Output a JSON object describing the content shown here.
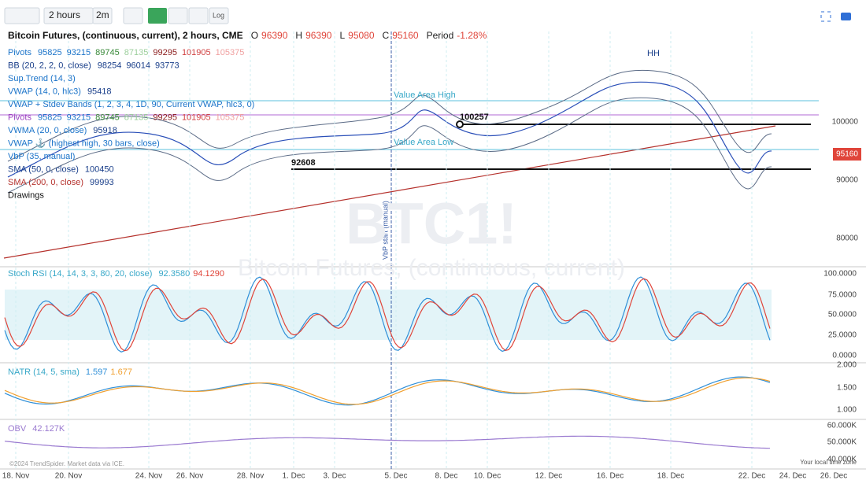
{
  "toolbar": {
    "interval": "2 hours",
    "range": "2m",
    "log": "Log"
  },
  "header": {
    "title": "Bitcoin Futures, (continuous, current), 2 hours, CME",
    "ohlc": [
      {
        "label": "O",
        "value": "96390"
      },
      {
        "label": "H",
        "value": "96390"
      },
      {
        "label": "L",
        "value": "95080"
      },
      {
        "label": "C",
        "value": "95160"
      }
    ],
    "period_label": "Period",
    "period_value": "-1.28%"
  },
  "legend": [
    {
      "name": "Pivots",
      "values": [
        "95825",
        "93215",
        "89745",
        "87135",
        "99295",
        "101905",
        "105375"
      ]
    },
    {
      "name": "BB (20, 2, 2, 0, close)",
      "values": [
        "98254",
        "96014",
        "93773"
      ]
    },
    {
      "name": "Sup.Trend (14, 3)",
      "values": []
    },
    {
      "name": "VWAP (14, 0, hlc3)",
      "values": [
        "95418"
      ]
    },
    {
      "name": "VWAP + Stdev Bands (1, 2, 3, 4, 1D, 90, Current VWAP, hlc3, 0)",
      "values": []
    },
    {
      "name": "Pivots",
      "values": [
        "95825",
        "93215",
        "89745",
        "87135",
        "99295",
        "101905",
        "105375"
      ]
    },
    {
      "name": "VWMA (20, 0, close)",
      "values": [
        "95918"
      ]
    },
    {
      "name": "VWAP ⚓ (highest high, 30 bars, close)",
      "values": []
    },
    {
      "name": "VbP (35, manual)",
      "values": []
    },
    {
      "name": "SMA (50, 0, close)",
      "values": [
        "100450"
      ]
    },
    {
      "name": "SMA (200, 0, close)",
      "values": [
        "99993"
      ]
    },
    {
      "name": "Drawings",
      "values": []
    }
  ],
  "annotations": {
    "value_area_high": "Value Area High",
    "value_area_low": "Value Area Low",
    "level_high": "100257",
    "level_low": "92608",
    "hh": "HH",
    "vbp_start": "VbP start (manual)",
    "watermark_symbol": "BTC1!",
    "watermark_name": "Bitcoin Futures, (continuous, current)"
  },
  "price_axis": {
    "ticks": [
      "100000",
      "90000",
      "80000"
    ],
    "last_price": "95160"
  },
  "panes": [
    {
      "name": "Stoch RSI (14, 14, 3, 3, 80, 20, close)",
      "values": [
        "92.3580",
        "94.1290"
      ],
      "ticks": [
        "100.0000",
        "75.0000",
        "50.0000",
        "25.0000",
        "0.0000"
      ]
    },
    {
      "name": "NATR (14, 5, sma)",
      "values": [
        "1.597",
        "1.677"
      ],
      "ticks": [
        "2.000",
        "1.500",
        "1.000"
      ]
    },
    {
      "name": "OBV",
      "values": [
        "42.127K"
      ],
      "ticks": [
        "60.000K",
        "50.000K",
        "40.000K"
      ]
    }
  ],
  "x_axis": [
    "18. Nov",
    "20. Nov",
    "24. Nov",
    "26. Nov",
    "28. Nov",
    "1. Dec",
    "3. Dec",
    "5. Dec",
    "8. Dec",
    "10. Dec",
    "12. Dec",
    "16. Dec",
    "18. Dec",
    "22. Dec",
    "24. Dec",
    "26. Dec"
  ],
  "footer": {
    "copyright": "©2024 TrendSpider. Market data via ICE.",
    "timezone": "Your local time zone"
  }
}
